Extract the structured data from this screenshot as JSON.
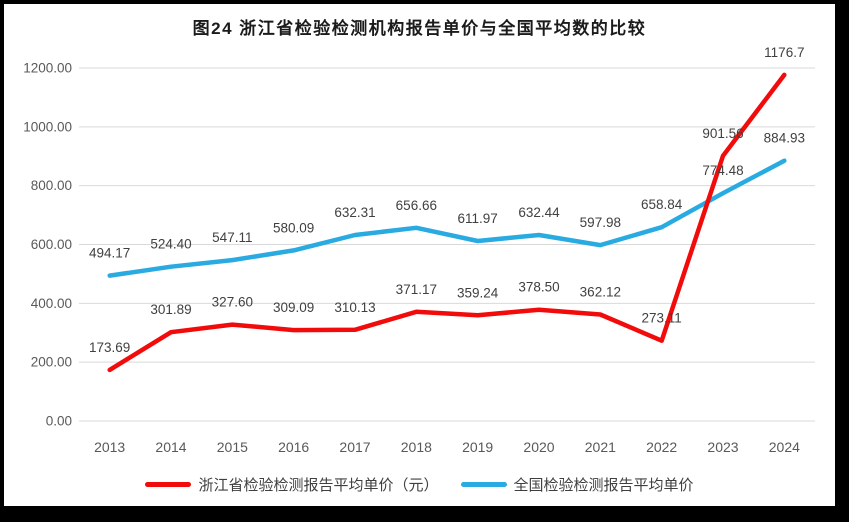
{
  "title": "图24  浙江省检验检测机构报告单价与全国平均数的比较",
  "colors": {
    "frame": "#000000",
    "background": "#ffffff",
    "grid": "#d9d9d9",
    "axis_text": "#595959",
    "label_text": "#404040"
  },
  "chart_data": {
    "type": "line",
    "title": "图24 浙江省检验检测机构报告单价与全国平均数的比较",
    "categories": [
      "2013",
      "2014",
      "2015",
      "2016",
      "2017",
      "2018",
      "2019",
      "2020",
      "2021",
      "2022",
      "2023",
      "2024"
    ],
    "series": [
      {
        "id": "zhejiang",
        "name": "浙江省检验检测报告平均单价（元）",
        "color": "#f20b0b",
        "values": [
          173.69,
          301.89,
          327.6,
          309.09,
          310.13,
          371.17,
          359.24,
          378.5,
          362.12,
          273.11,
          901.56,
          1176.7
        ],
        "labels": [
          "173.69",
          "301.89",
          "327.60",
          "309.09",
          "310.13",
          "371.17",
          "359.24",
          "378.50",
          "362.12",
          "273.11",
          "901.56",
          "1176.7"
        ]
      },
      {
        "id": "national",
        "name": "全国检验检测报告平均单价",
        "color": "#29abe2",
        "values": [
          494.17,
          524.4,
          547.11,
          580.09,
          632.31,
          656.66,
          611.97,
          632.44,
          597.98,
          658.84,
          774.48,
          884.93
        ],
        "labels": [
          "494.17",
          "524.40",
          "547.11",
          "580.09",
          "632.31",
          "656.66",
          "611.97",
          "632.44",
          "597.98",
          "658.84",
          "774.48",
          "884.93"
        ]
      }
    ],
    "ylim": [
      0,
      1200
    ],
    "ytick_step": 200,
    "ytick_decimals": 2,
    "grid": true,
    "data_labels": true,
    "legend_position": "bottom"
  }
}
